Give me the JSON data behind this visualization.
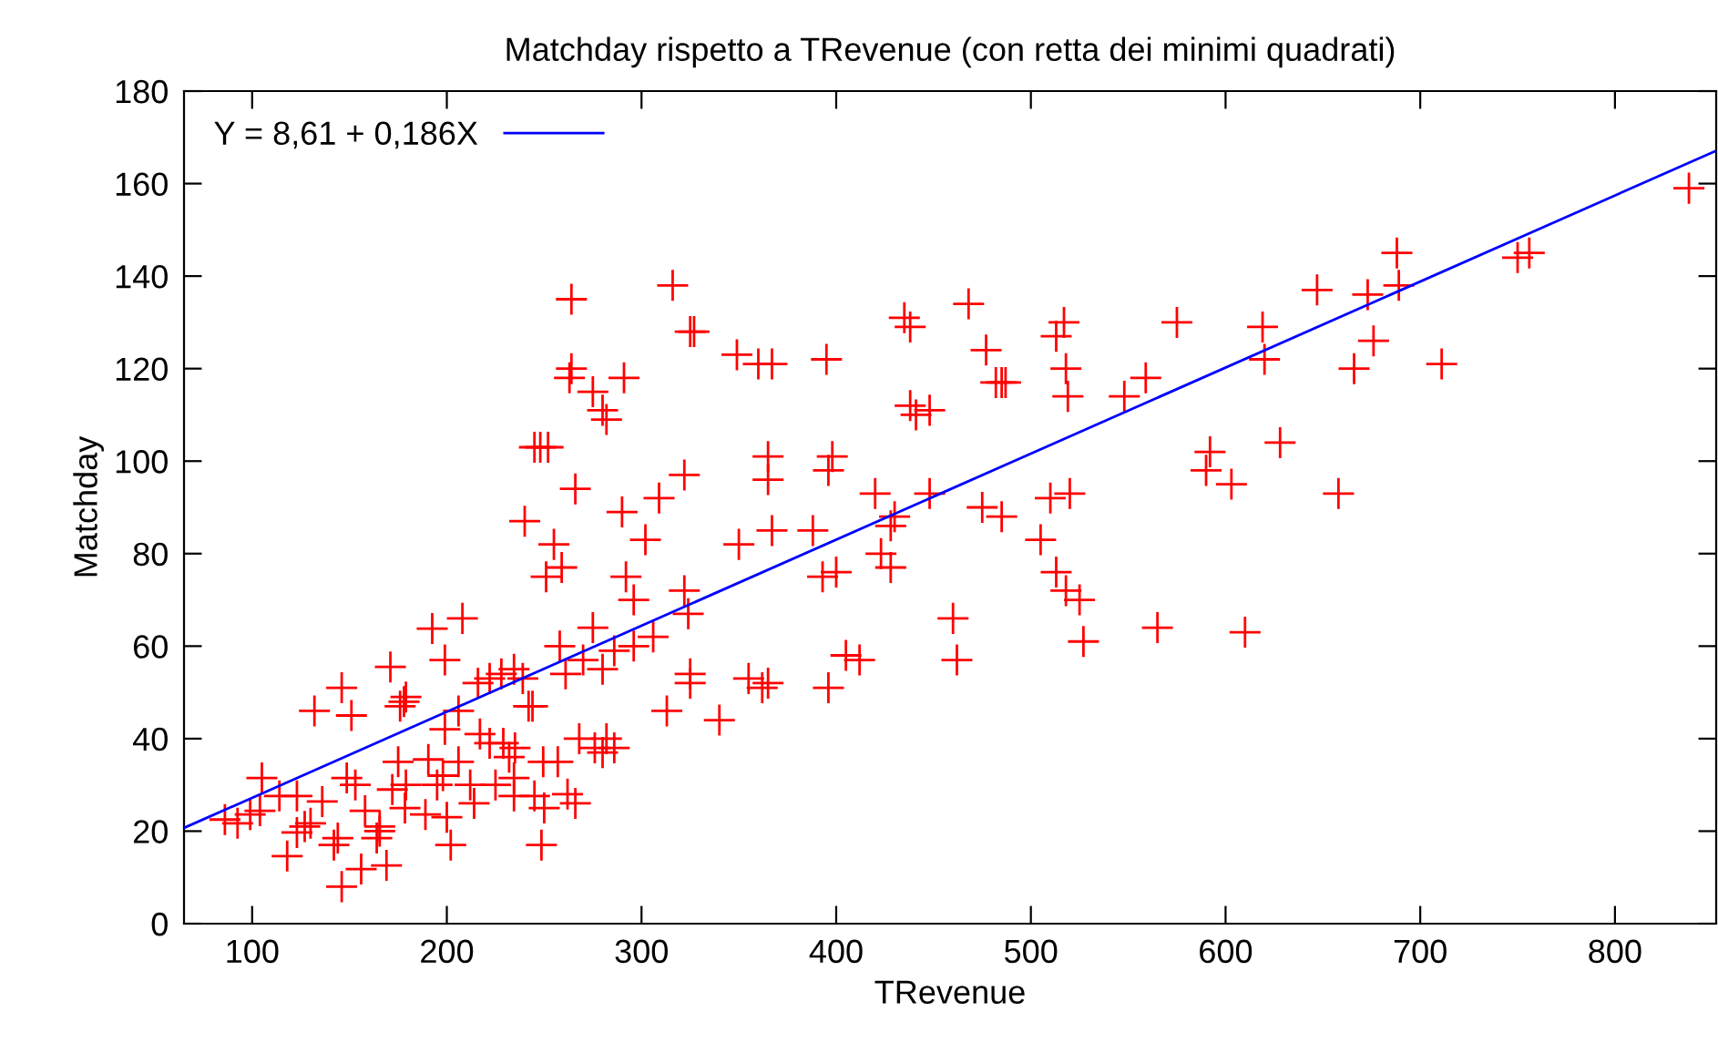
{
  "chart_data": {
    "type": "scatter",
    "title": "Matchday rispetto a TRevenue (con retta dei minimi quadrati)",
    "xlabel": "TRevenue",
    "ylabel": "Matchday",
    "xlim": [
      65,
      852
    ],
    "ylim": [
      0,
      180
    ],
    "xticks": [
      100,
      200,
      300,
      400,
      500,
      600,
      700,
      800
    ],
    "yticks": [
      0,
      20,
      40,
      60,
      80,
      100,
      120,
      140,
      160,
      180
    ],
    "grid": false,
    "legend": "top left",
    "series": [
      {
        "marker": "cross",
        "color": "#ff0000",
        "x": [
          264,
          316,
          325,
          327,
          349,
          360,
          367,
          395,
          435,
          438,
          468,
          513,
          517,
          518,
          519,
          477,
          482,
          485,
          487,
          575,
          559,
          548,
          619,
          620,
          647,
          673,
          676,
          666,
          688,
          689,
          711,
          750,
          756,
          838,
          628,
          590,
          592,
          438,
          441,
          448,
          263,
          264,
          275,
          280,
          282,
          291,
          245,
          248,
          252,
          365,
          398,
          396,
          266,
          240,
          255,
          259,
          251,
          290,
          302,
          309,
          322,
          292,
          296,
          322,
          324,
          275,
          286,
          296,
          306,
          280,
          350,
          365,
          367,
          388,
          393,
          400,
          420,
          423,
          428,
          430,
          428,
          448,
          475,
          485,
          505,
          510,
          513,
          518,
          520,
          525,
          527,
          565,
          603,
          610,
          658,
          396,
          405,
          412,
          460,
          462,
          313,
          325,
          325,
          340,
          355,
          362,
          365,
          192.5,
          208,
          199,
          171,
          146,
          132,
          151,
          176,
          179,
          178,
          199,
          216,
          228,
          234.5,
          222,
          244,
          206,
          217,
          222,
          235,
          234.5,
          206,
          198,
          195,
          212,
          214,
          190.5,
          175,
          172,
          179,
          178.5,
          189,
          200,
          202,
          165.5,
          164,
          158,
          148.6,
          153,
          136,
          123,
          114,
          105,
          99,
          104,
          86,
          92.5,
          123,
          127,
          130,
          144,
          142,
          156,
          146,
          169,
          118,
          165.5,
          245,
          234.5,
          225,
          249.5,
          248.6,
          250,
          257,
          262,
          266,
          280,
          282,
          286,
          276,
          268,
          229,
          232,
          242,
          239,
          261,
          258,
          270
        ],
        "values": [
          135,
          138,
          128,
          128,
          123,
          121,
          121,
          122,
          131,
          129,
          134,
          127,
          130,
          120,
          114,
          124,
          117,
          117,
          117,
          130,
          118,
          114,
          129,
          122,
          137,
          136,
          126,
          120,
          145,
          138,
          121,
          144,
          145,
          159,
          104,
          98,
          102,
          112,
          110,
          111,
          118,
          120,
          115,
          111,
          109,
          118,
          103,
          103,
          103,
          101,
          101,
          98,
          94,
          87,
          82,
          77,
          75,
          89,
          83,
          92,
          97,
          75,
          70,
          72,
          67,
          64,
          59,
          60,
          62,
          55,
          82,
          96,
          85,
          85,
          75,
          76,
          93,
          80,
          86,
          88,
          77,
          93,
          90,
          88,
          83,
          92,
          76,
          72,
          93,
          70,
          61,
          64,
          95,
          63,
          93,
          51,
          58,
          57,
          66,
          57,
          46,
          52,
          54,
          44,
          53,
          51,
          52,
          63.8,
          66,
          57,
          55.5,
          51,
          46,
          45,
          47,
          49,
          48,
          42,
          52,
          54,
          55,
          53,
          47,
          46,
          41,
          39,
          38,
          31.5,
          35,
          32,
          30,
          30,
          26,
          35.5,
          35,
          29,
          30,
          25,
          23.6,
          23,
          17,
          21,
          18.5,
          24.4,
          31.5,
          30,
          26.4,
          27.6,
          27.6,
          31.5,
          23.6,
          24.4,
          22.5,
          21.7,
          19.7,
          21,
          21.7,
          18.5,
          17,
          11.8,
          8,
          12.6,
          14.6,
          20,
          27.6,
          27.6,
          30,
          35,
          17,
          25,
          35,
          28,
          26,
          37,
          40,
          38,
          38,
          40,
          39,
          36,
          47,
          53,
          54,
          60,
          57
        ]
      },
      {
        "type": "line",
        "marker": "none",
        "name": "Y = 8,61 + 0,186X",
        "color": "#0000ff",
        "x": [
          65,
          852
        ],
        "values": [
          20.7,
          167.1
        ]
      }
    ]
  }
}
